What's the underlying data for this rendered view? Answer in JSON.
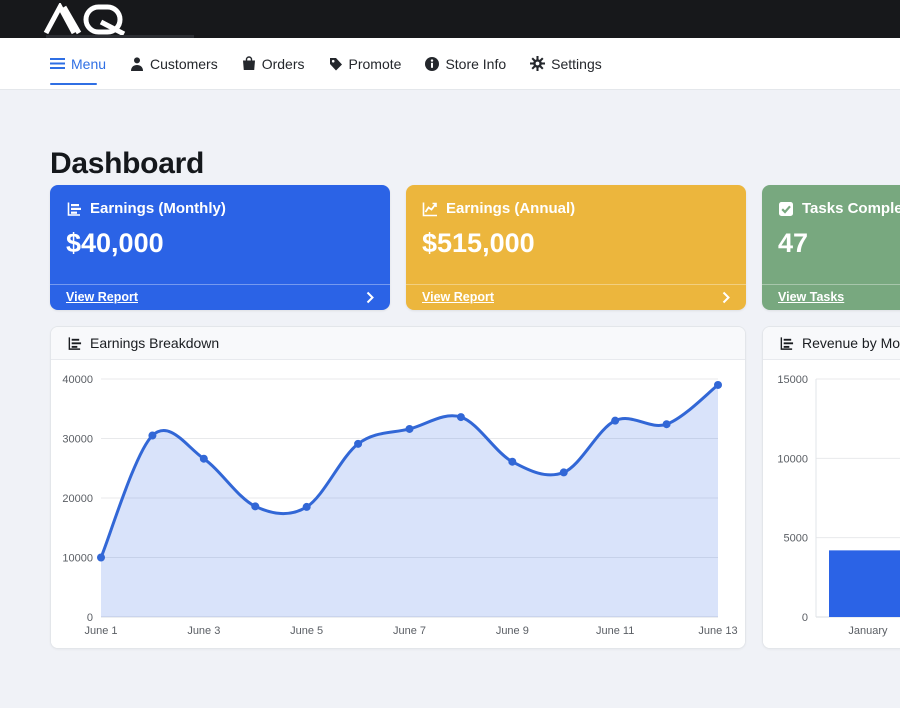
{
  "brand": {
    "logo_text": "AQ"
  },
  "nav": {
    "items": [
      {
        "label": "Menu",
        "icon": "hamburger-icon",
        "active": true
      },
      {
        "label": "Customers",
        "icon": "person-icon",
        "active": false
      },
      {
        "label": "Orders",
        "icon": "shopping-bag-icon",
        "active": false
      },
      {
        "label": "Promote",
        "icon": "tag-icon",
        "active": false
      },
      {
        "label": "Store Info",
        "icon": "info-circle-icon",
        "active": false
      },
      {
        "label": "Settings",
        "icon": "gear-icon",
        "active": false
      }
    ]
  },
  "page": {
    "title": "Dashboard"
  },
  "stat_cards": [
    {
      "title": "Earnings (Monthly)",
      "value": "$40,000",
      "link": "View Report",
      "color": "#2b63e6",
      "icon": "bar-chart-icon"
    },
    {
      "title": "Earnings (Annual)",
      "value": "$515,000",
      "link": "View Report",
      "color": "#ecb63d",
      "icon": "line-chart-icon"
    },
    {
      "title": "Tasks Completed",
      "value": "47",
      "link": "View Tasks",
      "color": "#78a87f",
      "icon": "check-square-icon"
    }
  ],
  "chart_data": [
    {
      "type": "area",
      "title": "Earnings Breakdown",
      "x": [
        "June 1",
        "June 2",
        "June 3",
        "June 4",
        "June 5",
        "June 6",
        "June 7",
        "June 8",
        "June 9",
        "June 10",
        "June 11",
        "June 12",
        "June 13"
      ],
      "values": [
        10000,
        30500,
        26600,
        18600,
        18500,
        29100,
        31600,
        33600,
        26100,
        24300,
        33000,
        32400,
        39000
      ],
      "x_tick_step": 2,
      "ylim": [
        0,
        40000
      ],
      "yticks": [
        0,
        10000,
        20000,
        30000,
        40000
      ],
      "line_color": "#3267d6",
      "fill_color": "rgba(45,99,228,0.18)",
      "grid": true,
      "legend": "none"
    },
    {
      "type": "bar",
      "title": "Revenue by Month",
      "categories": [
        "January"
      ],
      "values": [
        4200
      ],
      "ylim": [
        0,
        15000
      ],
      "yticks": [
        0,
        5000,
        10000,
        15000
      ],
      "bar_color": "#2b63e6",
      "grid": true,
      "legend": "none",
      "partially_visible": true
    }
  ]
}
